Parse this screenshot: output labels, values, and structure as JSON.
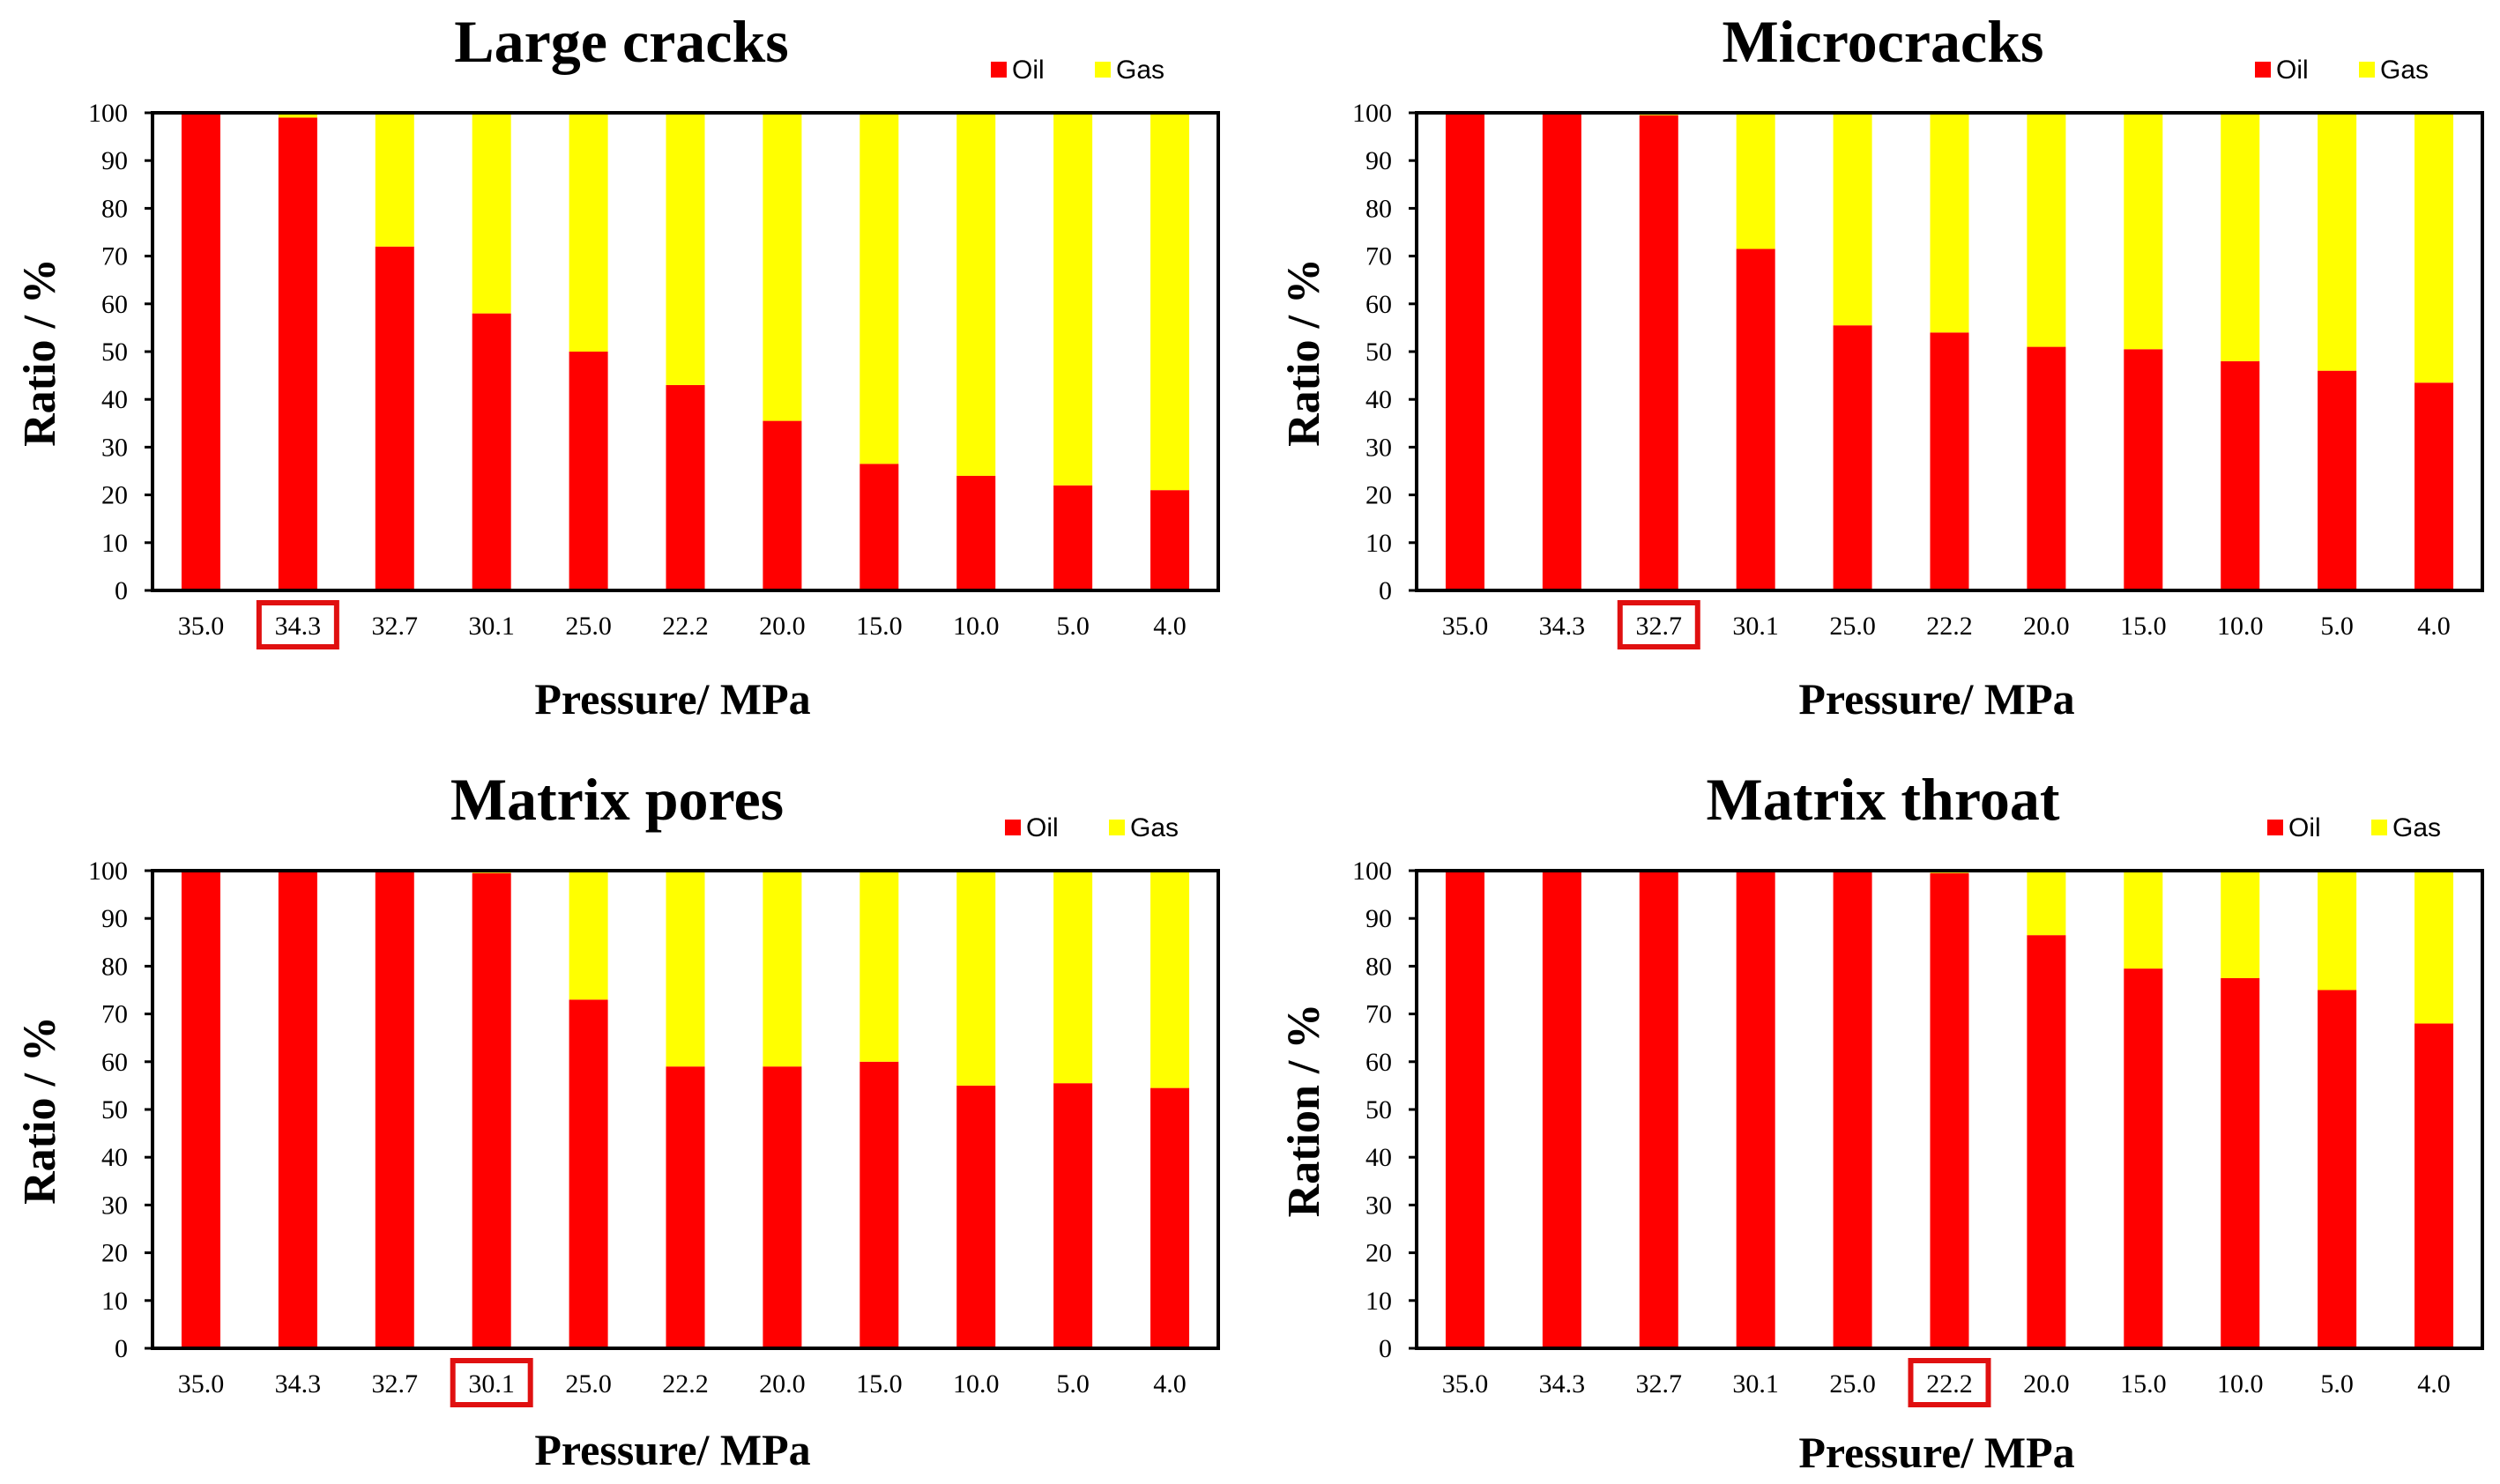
{
  "colors": {
    "oil": "#FF0000",
    "gas": "#FFFF00",
    "highlight": "#E01010",
    "axis": "#000000"
  },
  "chart_data": [
    {
      "type": "bar",
      "stacked": true,
      "title": "Large cracks",
      "xlabel": "Pressure/  MPa",
      "ylabel": "Ratio / %",
      "ylim": [
        0,
        100
      ],
      "yticks": [
        "0",
        "10",
        "20",
        "30",
        "40",
        "50",
        "60",
        "70",
        "80",
        "90",
        "100"
      ],
      "categories": [
        "35.0",
        "34.3",
        "32.7",
        "30.1",
        "25.0",
        "22.2",
        "20.0",
        "15.0",
        "10.0",
        "5.0",
        "4.0"
      ],
      "highlighted_category": "34.3",
      "legend": [
        "Oil",
        "Gas"
      ],
      "series": [
        {
          "name": "Oil",
          "values": [
            100,
            99,
            72,
            58,
            50,
            43,
            35.5,
            26.5,
            24,
            22,
            21
          ]
        },
        {
          "name": "Gas",
          "values": [
            0,
            1,
            28,
            42,
            50,
            57,
            64.5,
            73.5,
            76,
            78,
            79
          ]
        }
      ]
    },
    {
      "type": "bar",
      "stacked": true,
      "title": "Microcracks",
      "xlabel": "Pressure/  MPa",
      "ylabel": "Ratio / %",
      "ylim": [
        0,
        100
      ],
      "yticks": [
        "0",
        "10",
        "20",
        "30",
        "40",
        "50",
        "60",
        "70",
        "80",
        "90",
        "100"
      ],
      "categories": [
        "35.0",
        "34.3",
        "32.7",
        "30.1",
        "25.0",
        "22.2",
        "20.0",
        "15.0",
        "10.0",
        "5.0",
        "4.0"
      ],
      "highlighted_category": "32.7",
      "legend": [
        "Oil",
        "Gas"
      ],
      "series": [
        {
          "name": "Oil",
          "values": [
            100,
            100,
            99.5,
            71.5,
            55.5,
            54,
            51,
            50.5,
            48,
            46,
            43.5
          ]
        },
        {
          "name": "Gas",
          "values": [
            0,
            0,
            0.5,
            28.5,
            44.5,
            46,
            49,
            49.5,
            52,
            54,
            56.5
          ]
        }
      ]
    },
    {
      "type": "bar",
      "stacked": true,
      "title": "Matrix pores",
      "xlabel": "Pressure/  MPa",
      "ylabel": "Ratio / %",
      "ylim": [
        0,
        100
      ],
      "yticks": [
        "0",
        "10",
        "20",
        "30",
        "40",
        "50",
        "60",
        "70",
        "80",
        "90",
        "100"
      ],
      "categories": [
        "35.0",
        "34.3",
        "32.7",
        "30.1",
        "25.0",
        "22.2",
        "20.0",
        "15.0",
        "10.0",
        "5.0",
        "4.0"
      ],
      "highlighted_category": "30.1",
      "legend": [
        "Oil",
        "Gas"
      ],
      "series": [
        {
          "name": "Oil",
          "values": [
            100,
            100,
            100,
            99.5,
            73,
            59,
            59,
            60,
            55,
            55.5,
            54.5
          ]
        },
        {
          "name": "Gas",
          "values": [
            0,
            0,
            0,
            0.5,
            27,
            41,
            41,
            40,
            45,
            44.5,
            45.5
          ]
        }
      ]
    },
    {
      "type": "bar",
      "stacked": true,
      "title": "Matrix throat",
      "xlabel": "Pressure/  MPa",
      "ylabel": "Ration / %",
      "ylim": [
        0,
        100
      ],
      "yticks": [
        "0",
        "10",
        "20",
        "30",
        "40",
        "50",
        "60",
        "70",
        "80",
        "90",
        "100"
      ],
      "categories": [
        "35.0",
        "34.3",
        "32.7",
        "30.1",
        "25.0",
        "22.2",
        "20.0",
        "15.0",
        "10.0",
        "5.0",
        "4.0"
      ],
      "highlighted_category": "22.2",
      "legend": [
        "Oil",
        "Gas"
      ],
      "series": [
        {
          "name": "Oil",
          "values": [
            100,
            100,
            100,
            100,
            100,
            99.5,
            86.5,
            79.5,
            77.5,
            75,
            68
          ]
        },
        {
          "name": "Gas",
          "values": [
            0,
            0,
            0,
            0,
            0,
            0.5,
            13.5,
            20.5,
            22.5,
            25,
            32
          ]
        }
      ]
    }
  ]
}
